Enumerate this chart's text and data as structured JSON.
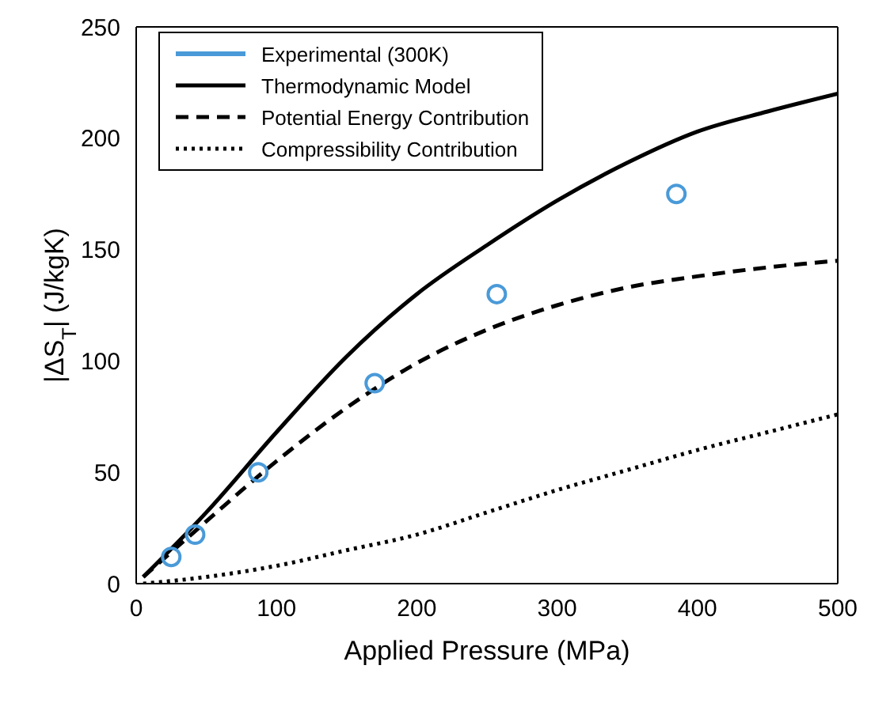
{
  "chart_data": {
    "type": "line",
    "xlabel": "Applied Pressure (MPa)",
    "ylabel": "|ΔS$_{T}$| (J/kgK)",
    "xlim": [
      0,
      500
    ],
    "xticks": [
      0,
      100,
      200,
      300,
      400,
      500
    ],
    "ylim": [
      0,
      250
    ],
    "yticks": [
      0,
      50,
      100,
      150,
      200,
      250
    ],
    "grid": false,
    "legend": "top left",
    "series": [
      {
        "name": "Experimental (300K)",
        "type": "scatter",
        "marker": "circle",
        "color": "#4a9ad8",
        "x": [
          25,
          42,
          87,
          170,
          257,
          385
        ],
        "values": [
          12,
          22,
          50,
          90,
          130,
          175
        ]
      },
      {
        "name": "Thermodynamic Model",
        "type": "line",
        "marker": "none",
        "line_style": "solid",
        "color": "#000000",
        "x": [
          5,
          50,
          100,
          150,
          200,
          250,
          300,
          350,
          400,
          450,
          500
        ],
        "values": [
          3,
          32,
          68,
          102,
          130,
          152,
          172,
          189,
          203,
          212,
          220
        ]
      },
      {
        "name": "Potential Energy Contribution",
        "type": "line",
        "marker": "none",
        "line_style": "dashed",
        "color": "#000000",
        "x": [
          5,
          50,
          100,
          150,
          200,
          250,
          300,
          350,
          400,
          450,
          500
        ],
        "values": [
          3,
          28,
          55,
          79,
          99,
          114,
          125,
          133,
          138,
          142,
          145
        ]
      },
      {
        "name": "Compressibility Contribution",
        "type": "line",
        "marker": "none",
        "line_style": "dotted",
        "color": "#000000",
        "x": [
          5,
          50,
          100,
          150,
          200,
          250,
          300,
          350,
          400,
          450,
          500
        ],
        "values": [
          0,
          3,
          8,
          15,
          22,
          32,
          42,
          51,
          60,
          68,
          76
        ]
      }
    ]
  }
}
